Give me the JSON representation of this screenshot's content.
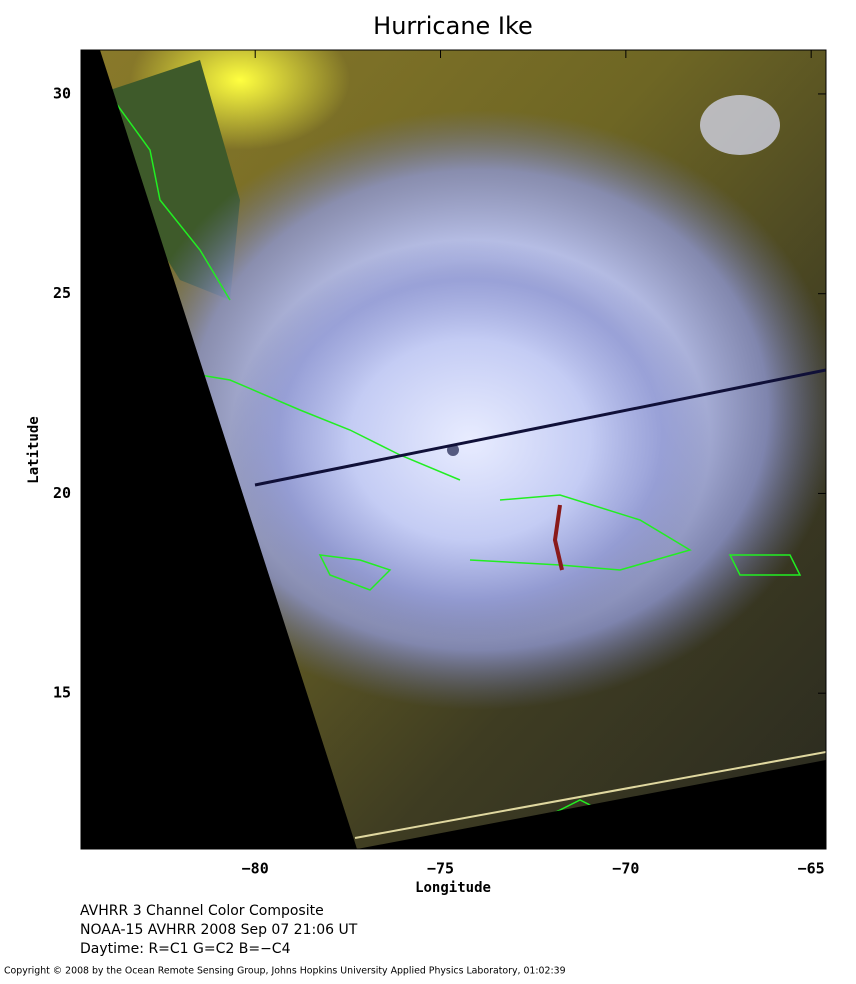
{
  "header": {
    "title": "Hurricane Ike"
  },
  "map": {
    "xlim": [
      -84.7,
      -64.6
    ],
    "ylim": [
      11.1,
      31.1
    ],
    "xticks": [
      -80,
      -75,
      -70,
      -65
    ],
    "yticks": [
      15,
      20,
      25,
      30
    ],
    "x_label": "Longitude",
    "y_label": "Latitude"
  },
  "caption": [
    "AVHRR 3 Channel Color Composite",
    "NOAA-15 AVHRR 2008 Sep 07 21:06 UT",
    "Daytime: R=C1 G=C2 B=−C4"
  ],
  "copyright": "Copyright © 2008 by the Ocean Remote Sensing Group, Johns Hopkins University Applied Physics Laboratory, 01:02:39"
}
